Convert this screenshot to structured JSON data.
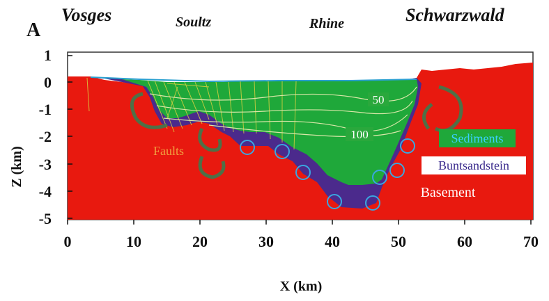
{
  "panel_label": "A",
  "regions_top": [
    "Vosges",
    "Soultz",
    "Rhine",
    "Schwarzwald"
  ],
  "axes": {
    "xlabel": "X (km)",
    "ylabel": "Z (km)",
    "x_ticks": [
      "0",
      "10",
      "20",
      "30",
      "40",
      "50",
      "60",
      "70"
    ],
    "y_ticks": [
      "1",
      "0",
      "-1",
      "-2",
      "-3",
      "-4",
      "-5"
    ],
    "xlim": [
      0,
      70
    ],
    "ylim": [
      -5,
      1
    ]
  },
  "legend": {
    "sediments": "Sediments",
    "buntsandstein": "Buntsandstein",
    "basement": "Basement",
    "faults": "Faults"
  },
  "isotherms": [
    "50",
    "100"
  ],
  "colors": {
    "basement": "#e8190f",
    "sediments": "#1fa83a",
    "buntsandstein": "#4b2a8c",
    "fault_lines": "#d9d040",
    "convection_arrows": "#3e7a4e"
  }
}
